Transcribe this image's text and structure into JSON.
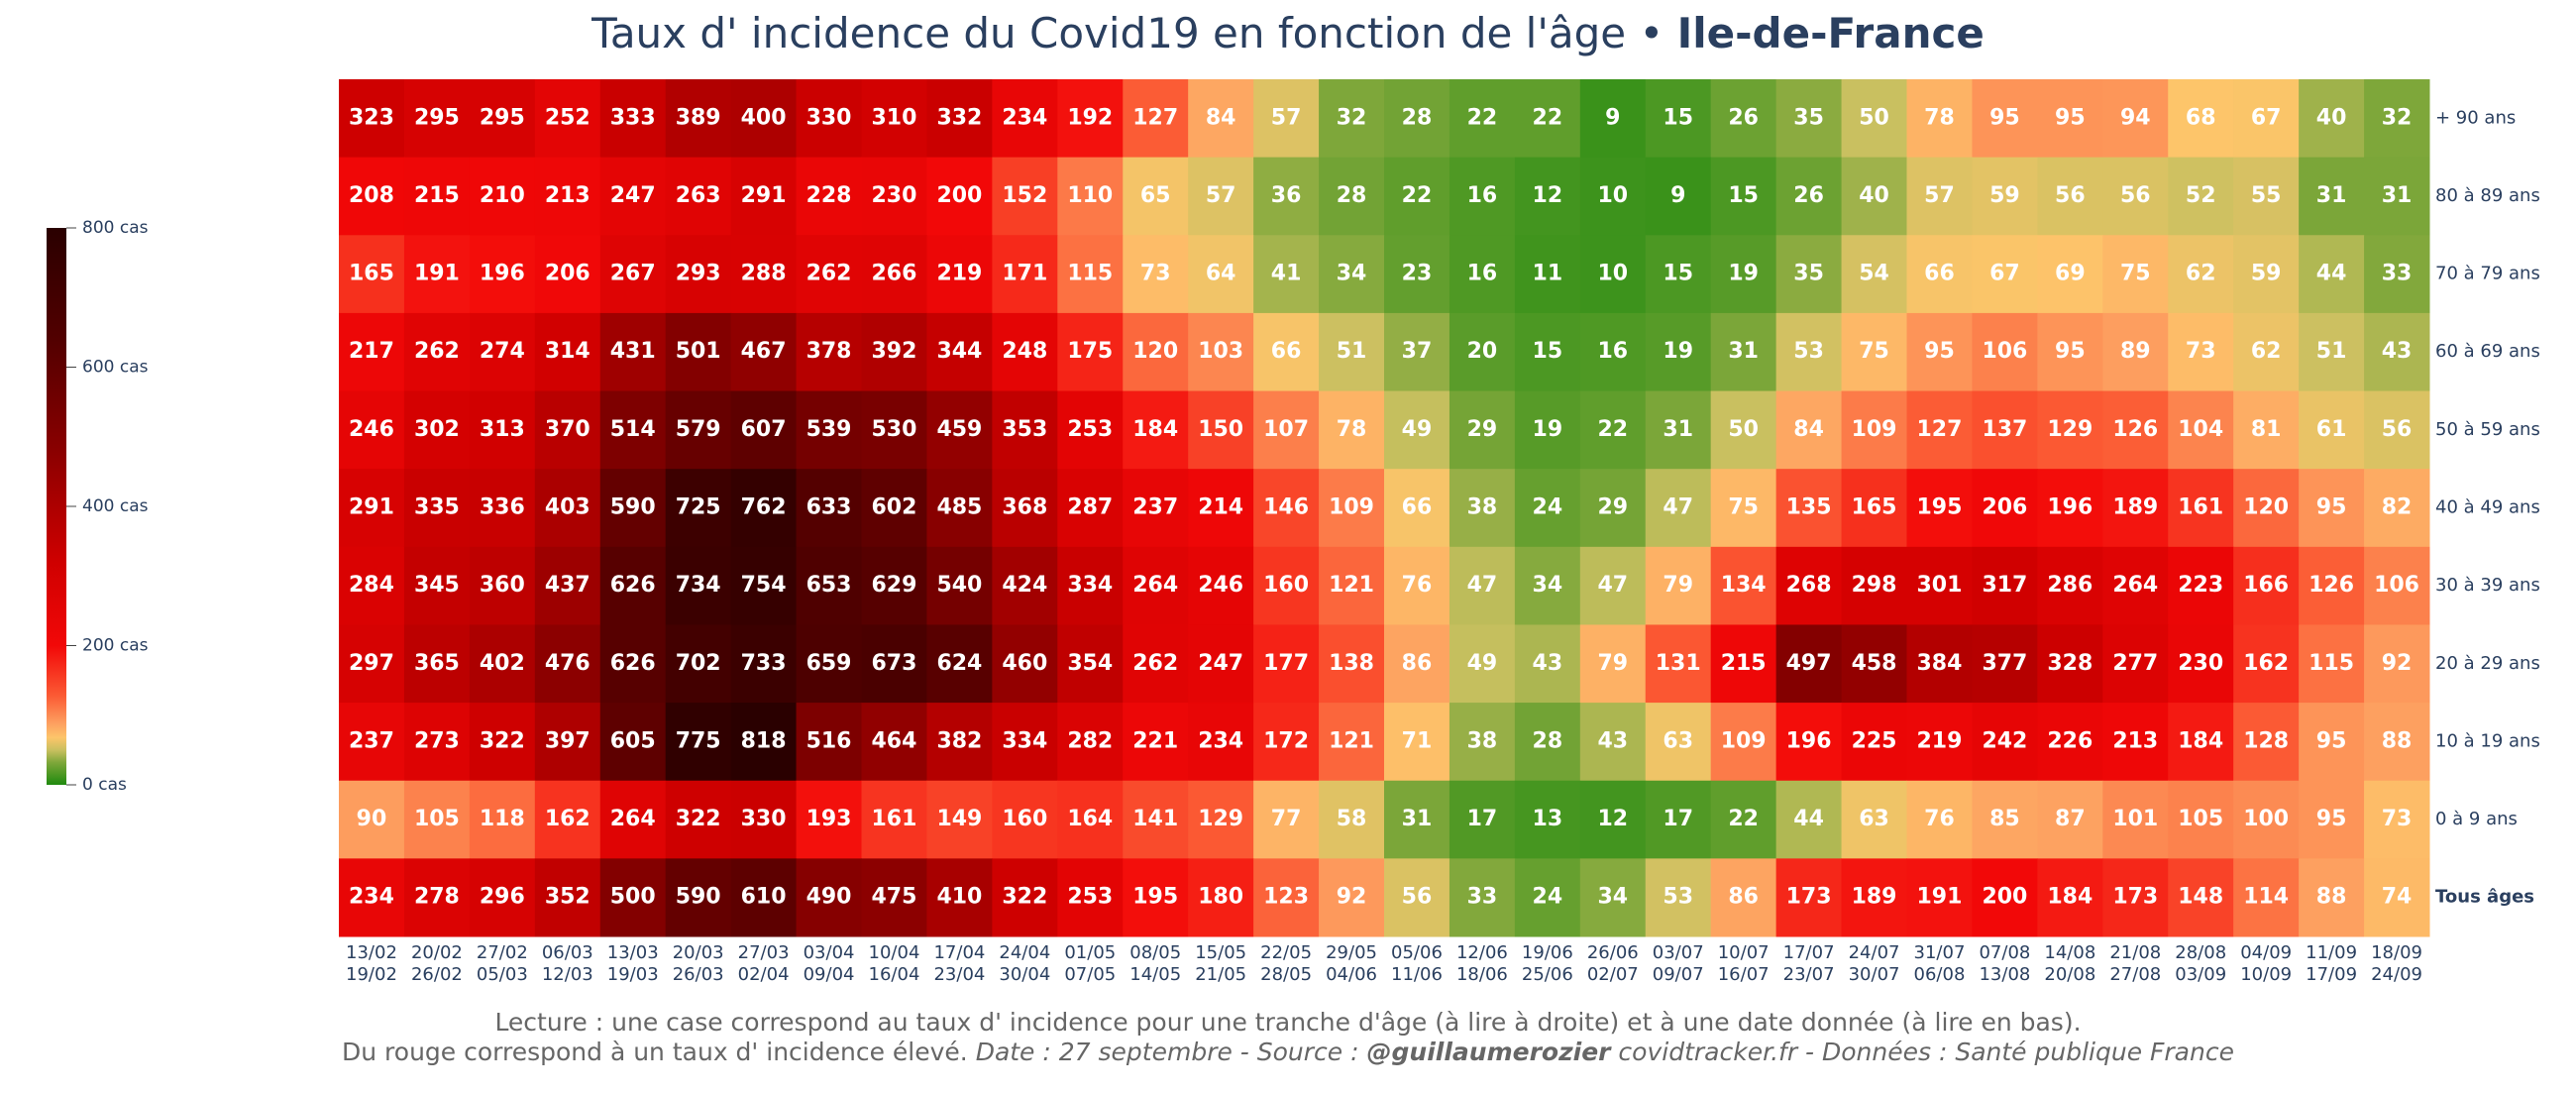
{
  "chart_data": {
    "type": "heatmap",
    "title": "Taux d' incidence du Covid19 en fonction de l'âge • ",
    "title_emphasis": "Ile-de-France",
    "categories": [
      [
        "13/02",
        "19/02"
      ],
      [
        "20/02",
        "26/02"
      ],
      [
        "27/02",
        "05/03"
      ],
      [
        "06/03",
        "12/03"
      ],
      [
        "13/03",
        "19/03"
      ],
      [
        "20/03",
        "26/03"
      ],
      [
        "27/03",
        "02/04"
      ],
      [
        "03/04",
        "09/04"
      ],
      [
        "10/04",
        "16/04"
      ],
      [
        "17/04",
        "23/04"
      ],
      [
        "24/04",
        "30/04"
      ],
      [
        "01/05",
        "07/05"
      ],
      [
        "08/05",
        "14/05"
      ],
      [
        "15/05",
        "21/05"
      ],
      [
        "22/05",
        "28/05"
      ],
      [
        "29/05",
        "04/06"
      ],
      [
        "05/06",
        "11/06"
      ],
      [
        "12/06",
        "18/06"
      ],
      [
        "19/06",
        "25/06"
      ],
      [
        "26/06",
        "02/07"
      ],
      [
        "03/07",
        "09/07"
      ],
      [
        "10/07",
        "16/07"
      ],
      [
        "17/07",
        "23/07"
      ],
      [
        "24/07",
        "30/07"
      ],
      [
        "31/07",
        "06/08"
      ],
      [
        "07/08",
        "13/08"
      ],
      [
        "14/08",
        "20/08"
      ],
      [
        "21/08",
        "27/08"
      ],
      [
        "28/08",
        "03/09"
      ],
      [
        "04/09",
        "10/09"
      ],
      [
        "11/09",
        "17/09"
      ],
      [
        "18/09",
        "24/09"
      ]
    ],
    "series": [
      {
        "name": "+ 90 ans",
        "values": [
          323,
          295,
          295,
          252,
          333,
          389,
          400,
          330,
          310,
          332,
          234,
          192,
          127,
          84,
          57,
          32,
          28,
          22,
          22,
          9,
          15,
          26,
          35,
          50,
          78,
          95,
          95,
          94,
          68,
          67,
          40,
          32
        ]
      },
      {
        "name": "80 à 89 ans",
        "values": [
          208,
          215,
          210,
          213,
          247,
          263,
          291,
          228,
          230,
          200,
          152,
          110,
          65,
          57,
          36,
          28,
          22,
          16,
          12,
          10,
          9,
          15,
          26,
          40,
          57,
          59,
          56,
          56,
          52,
          55,
          31,
          31
        ]
      },
      {
        "name": "70 à 79 ans",
        "values": [
          165,
          191,
          196,
          206,
          267,
          293,
          288,
          262,
          266,
          219,
          171,
          115,
          73,
          64,
          41,
          34,
          23,
          16,
          11,
          10,
          15,
          19,
          35,
          54,
          66,
          67,
          69,
          75,
          62,
          59,
          44,
          33
        ]
      },
      {
        "name": "60 à 69 ans",
        "values": [
          217,
          262,
          274,
          314,
          431,
          501,
          467,
          378,
          392,
          344,
          248,
          175,
          120,
          103,
          66,
          51,
          37,
          20,
          15,
          16,
          19,
          31,
          53,
          75,
          95,
          106,
          95,
          89,
          73,
          62,
          51,
          43
        ]
      },
      {
        "name": "50 à 59 ans",
        "values": [
          246,
          302,
          313,
          370,
          514,
          579,
          607,
          539,
          530,
          459,
          353,
          253,
          184,
          150,
          107,
          78,
          49,
          29,
          19,
          22,
          31,
          50,
          84,
          109,
          127,
          137,
          129,
          126,
          104,
          81,
          61,
          56
        ]
      },
      {
        "name": "40 à 49 ans",
        "values": [
          291,
          335,
          336,
          403,
          590,
          725,
          762,
          633,
          602,
          485,
          368,
          287,
          237,
          214,
          146,
          109,
          66,
          38,
          24,
          29,
          47,
          75,
          135,
          165,
          195,
          206,
          196,
          189,
          161,
          120,
          95,
          82
        ]
      },
      {
        "name": "30 à 39 ans",
        "values": [
          284,
          345,
          360,
          437,
          626,
          734,
          754,
          653,
          629,
          540,
          424,
          334,
          264,
          246,
          160,
          121,
          76,
          47,
          34,
          47,
          79,
          134,
          268,
          298,
          301,
          317,
          286,
          264,
          223,
          166,
          126,
          106
        ]
      },
      {
        "name": "20 à 29 ans",
        "values": [
          297,
          365,
          402,
          476,
          626,
          702,
          733,
          659,
          673,
          624,
          460,
          354,
          262,
          247,
          177,
          138,
          86,
          49,
          43,
          79,
          131,
          215,
          497,
          458,
          384,
          377,
          328,
          277,
          230,
          162,
          115,
          92
        ]
      },
      {
        "name": "10 à 19 ans",
        "values": [
          237,
          273,
          322,
          397,
          605,
          775,
          818,
          516,
          464,
          382,
          334,
          282,
          221,
          234,
          172,
          121,
          71,
          38,
          28,
          43,
          63,
          109,
          196,
          225,
          219,
          242,
          226,
          213,
          184,
          128,
          95,
          88
        ]
      },
      {
        "name": "0 à 9 ans",
        "values": [
          90,
          105,
          118,
          162,
          264,
          322,
          330,
          193,
          161,
          149,
          160,
          164,
          141,
          129,
          77,
          58,
          31,
          17,
          13,
          12,
          17,
          22,
          44,
          63,
          76,
          85,
          87,
          101,
          105,
          100,
          95,
          73
        ]
      },
      {
        "name": "Tous âges",
        "values": [
          234,
          278,
          296,
          352,
          500,
          590,
          610,
          490,
          475,
          410,
          322,
          253,
          195,
          180,
          123,
          92,
          56,
          33,
          24,
          34,
          53,
          86,
          173,
          189,
          191,
          200,
          184,
          173,
          148,
          114,
          88,
          74
        ]
      }
    ],
    "zlim": [
      0,
      800
    ],
    "zticks": [
      {
        "value": 0,
        "label": "0 cas"
      },
      {
        "value": 200,
        "label": "200 cas"
      },
      {
        "value": 400,
        "label": "400 cas"
      },
      {
        "value": 600,
        "label": "600 cas"
      },
      {
        "value": 800,
        "label": "800 cas"
      }
    ],
    "colorscale": [
      [
        0,
        "#1f8a0e"
      ],
      [
        0.04,
        "#7ea73a"
      ],
      [
        0.0625,
        "#c9c060"
      ],
      [
        0.085,
        "#fdc56a"
      ],
      [
        0.11,
        "#fda060"
      ],
      [
        0.16,
        "#fb5a34"
      ],
      [
        0.25,
        "#f20808"
      ],
      [
        0.4,
        "#cf0000"
      ],
      [
        0.6,
        "#8a0000"
      ],
      [
        0.8,
        "#520000"
      ],
      [
        1,
        "#2a0000"
      ]
    ],
    "footer": [
      "Lecture : une case correspond au taux d' incidence pour une tranche d'âge (à lire à droite) et à une date donnée (à lire en bas).",
      [
        "Du rouge correspond à un taux d' incidence élevé.  ",
        "Date : 27 septembre - Source : ",
        "@guillaumerozier",
        " covidtracker.fr - Données : Santé publique France"
      ]
    ]
  }
}
